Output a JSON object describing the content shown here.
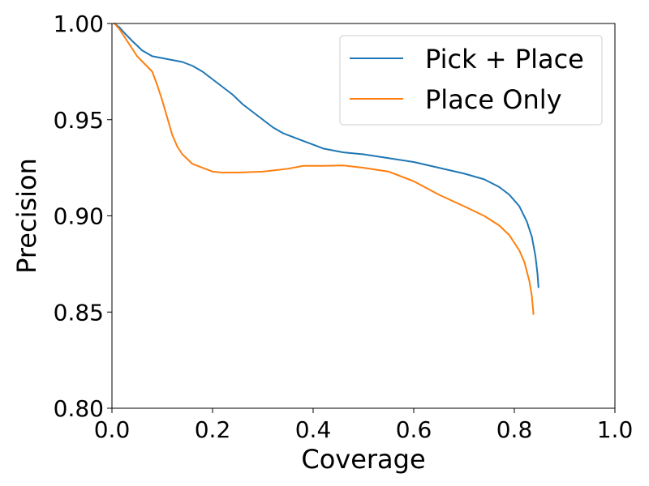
{
  "chart_data": {
    "type": "line",
    "title": "",
    "xlabel": "Coverage",
    "ylabel": "Precision",
    "xlim": [
      0.0,
      1.0
    ],
    "ylim": [
      0.8,
      1.0
    ],
    "x_ticks": [
      "0.0",
      "0.2",
      "0.4",
      "0.6",
      "0.8",
      "1.0"
    ],
    "y_ticks": [
      "0.80",
      "0.85",
      "0.90",
      "0.95",
      "1.00"
    ],
    "grid": false,
    "legend_position": "top-right",
    "series": [
      {
        "name": "Pick + Place",
        "color": "#1f77b4",
        "points": [
          [
            0.005,
            1.0
          ],
          [
            0.015,
            0.998
          ],
          [
            0.025,
            0.995
          ],
          [
            0.04,
            0.991
          ],
          [
            0.06,
            0.986
          ],
          [
            0.08,
            0.983
          ],
          [
            0.1,
            0.982
          ],
          [
            0.12,
            0.981
          ],
          [
            0.14,
            0.98
          ],
          [
            0.16,
            0.978
          ],
          [
            0.18,
            0.975
          ],
          [
            0.2,
            0.971
          ],
          [
            0.22,
            0.967
          ],
          [
            0.24,
            0.963
          ],
          [
            0.26,
            0.958
          ],
          [
            0.28,
            0.954
          ],
          [
            0.3,
            0.95
          ],
          [
            0.32,
            0.946
          ],
          [
            0.34,
            0.943
          ],
          [
            0.36,
            0.941
          ],
          [
            0.38,
            0.939
          ],
          [
            0.4,
            0.937
          ],
          [
            0.42,
            0.935
          ],
          [
            0.44,
            0.934
          ],
          [
            0.46,
            0.933
          ],
          [
            0.5,
            0.932
          ],
          [
            0.55,
            0.93
          ],
          [
            0.6,
            0.928
          ],
          [
            0.65,
            0.925
          ],
          [
            0.7,
            0.922
          ],
          [
            0.74,
            0.919
          ],
          [
            0.77,
            0.915
          ],
          [
            0.79,
            0.911
          ],
          [
            0.81,
            0.905
          ],
          [
            0.825,
            0.897
          ],
          [
            0.835,
            0.889
          ],
          [
            0.842,
            0.879
          ],
          [
            0.846,
            0.87
          ],
          [
            0.848,
            0.863
          ]
        ]
      },
      {
        "name": "Place Only",
        "color": "#ff7f0e",
        "points": [
          [
            0.005,
            1.0
          ],
          [
            0.015,
            0.997
          ],
          [
            0.03,
            0.991
          ],
          [
            0.05,
            0.983
          ],
          [
            0.065,
            0.979
          ],
          [
            0.08,
            0.975
          ],
          [
            0.09,
            0.968
          ],
          [
            0.1,
            0.96
          ],
          [
            0.11,
            0.951
          ],
          [
            0.12,
            0.942
          ],
          [
            0.13,
            0.936
          ],
          [
            0.14,
            0.932
          ],
          [
            0.16,
            0.927
          ],
          [
            0.18,
            0.925
          ],
          [
            0.2,
            0.923
          ],
          [
            0.22,
            0.9225
          ],
          [
            0.25,
            0.9225
          ],
          [
            0.3,
            0.923
          ],
          [
            0.35,
            0.9245
          ],
          [
            0.38,
            0.926
          ],
          [
            0.42,
            0.926
          ],
          [
            0.46,
            0.9262
          ],
          [
            0.5,
            0.925
          ],
          [
            0.55,
            0.923
          ],
          [
            0.6,
            0.918
          ],
          [
            0.65,
            0.911
          ],
          [
            0.7,
            0.905
          ],
          [
            0.74,
            0.9
          ],
          [
            0.77,
            0.895
          ],
          [
            0.79,
            0.89
          ],
          [
            0.81,
            0.882
          ],
          [
            0.82,
            0.876
          ],
          [
            0.83,
            0.866
          ],
          [
            0.835,
            0.858
          ],
          [
            0.838,
            0.849
          ]
        ]
      }
    ]
  }
}
